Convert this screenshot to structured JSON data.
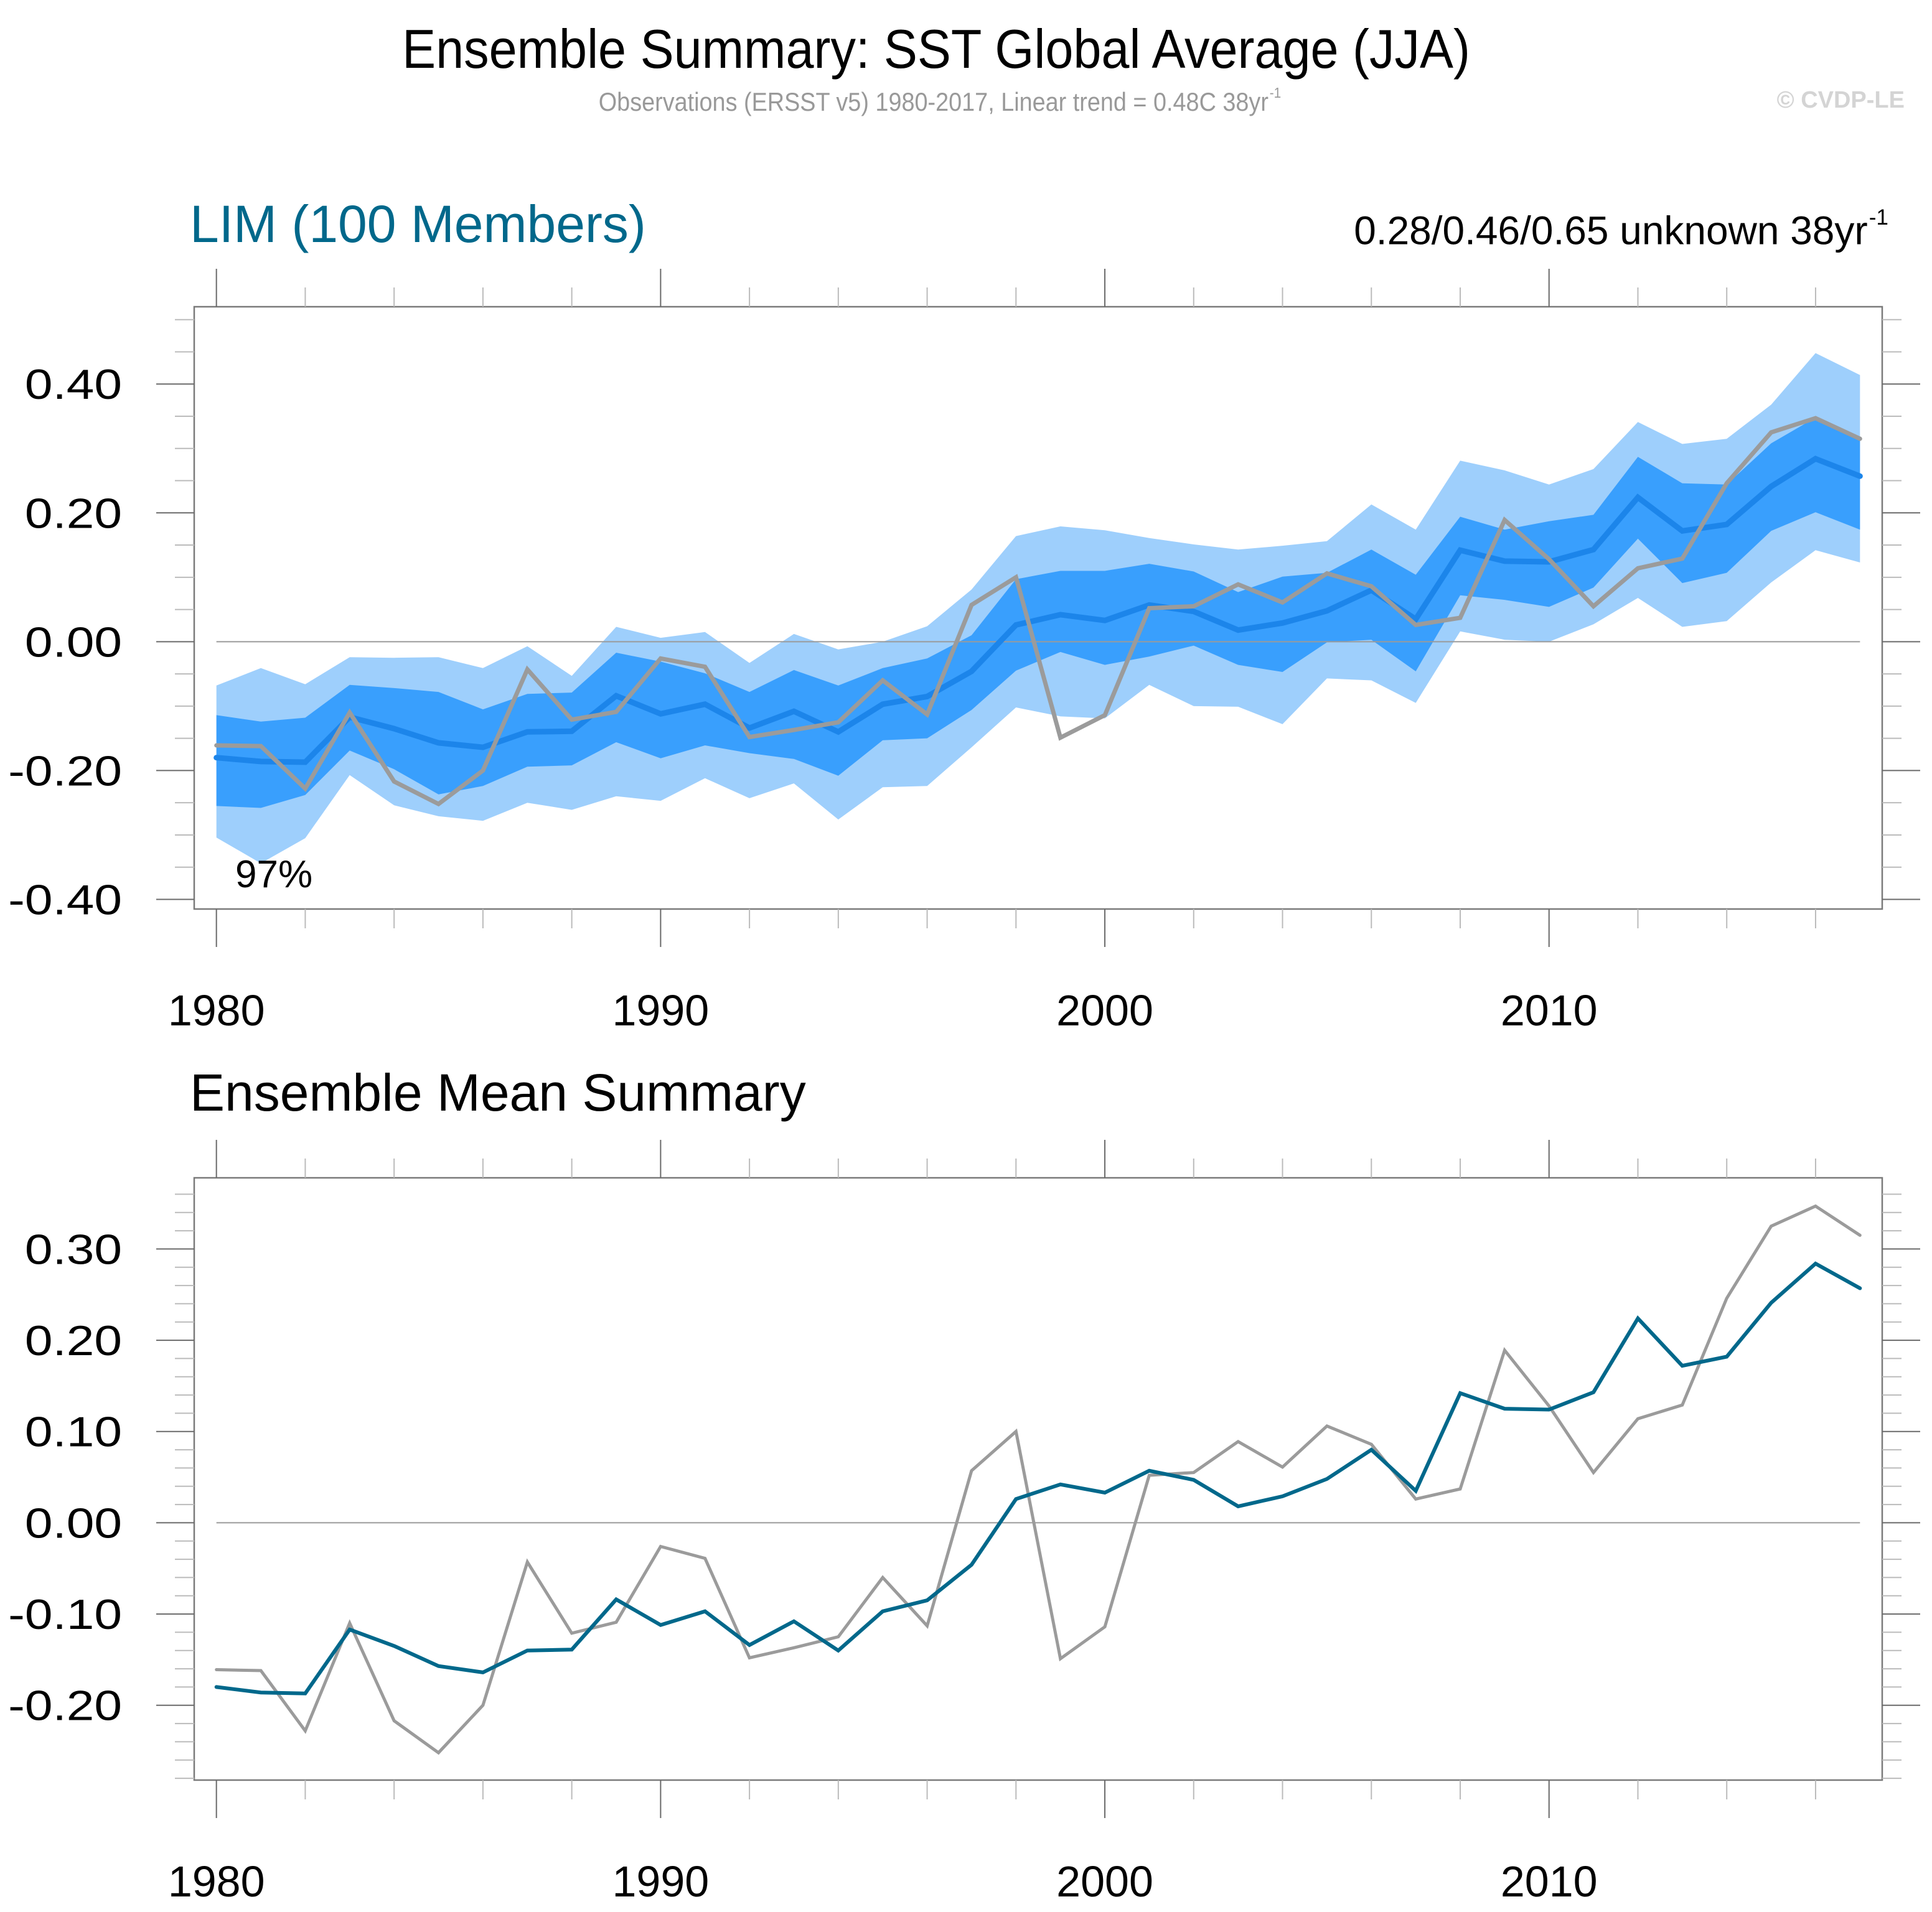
{
  "header": {
    "title": "Ensemble Summary: SST Global Average (JJA)",
    "subtitle_main": "Observations (ERSST v5) 1980-2017, Linear trend = 0.48C 38yr",
    "subtitle_sup": "-1",
    "copyright": "© CVDP-LE"
  },
  "upper_panel": {
    "title": "LIM (100 Members)",
    "trend_main": "0.28/0.46/0.65 unknown 38yr",
    "trend_sup": "-1",
    "annotation": "97%"
  },
  "lower_panel": {
    "title": "Ensemble Mean Summary"
  },
  "colors": {
    "outer_band": "#9ecffc",
    "inner_band": "#399ffd",
    "ensemble_mean_upper": "#1c85ea",
    "ensemble_mean_lower": "#00688b",
    "observations": "#9b9b9b",
    "title_accent": "#00688b"
  },
  "chart_data": [
    {
      "type": "area",
      "title": "LIM (100 Members)",
      "xlabel": "",
      "ylabel": "",
      "xlim": [
        1979.5,
        2017.5
      ],
      "ylim": [
        -0.415,
        0.52
      ],
      "x_ticks": [
        1980,
        1990,
        2000,
        2010
      ],
      "x_tick_labels": [
        "1980",
        "1990",
        "2000",
        "2010"
      ],
      "y_ticks": [
        -0.4,
        -0.2,
        0.0,
        0.2,
        0.4
      ],
      "y_tick_labels": [
        "-0.40",
        "-0.20",
        "0.00",
        "0.20",
        "0.40"
      ],
      "zero_line": true,
      "grid": false,
      "annotation": "97%",
      "x": [
        1980,
        1981,
        1982,
        1983,
        1984,
        1985,
        1986,
        1987,
        1988,
        1989,
        1990,
        1991,
        1992,
        1993,
        1994,
        1995,
        1996,
        1997,
        1998,
        1999,
        2000,
        2001,
        2002,
        2003,
        2004,
        2005,
        2006,
        2007,
        2008,
        2009,
        2010,
        2011,
        2012,
        2013,
        2014,
        2015,
        2016,
        2017
      ],
      "bands": [
        {
          "name": "outer range",
          "upper": [
            -0.068,
            -0.041,
            -0.066,
            -0.024,
            -0.025,
            -0.024,
            -0.041,
            -0.007,
            -0.053,
            0.023,
            0.006,
            0.015,
            -0.033,
            0.012,
            -0.012,
            0.0,
            0.024,
            0.081,
            0.164,
            0.179,
            0.173,
            0.161,
            0.151,
            0.143,
            0.149,
            0.156,
            0.213,
            0.174,
            0.281,
            0.266,
            0.244,
            0.268,
            0.341,
            0.307,
            0.315,
            0.368,
            0.448,
            0.414
          ],
          "lower": [
            -0.304,
            -0.344,
            -0.305,
            -0.207,
            -0.254,
            -0.271,
            -0.278,
            -0.25,
            -0.261,
            -0.24,
            -0.247,
            -0.212,
            -0.243,
            -0.22,
            -0.276,
            -0.226,
            -0.224,
            -0.164,
            -0.102,
            -0.116,
            -0.119,
            -0.067,
            -0.1,
            -0.101,
            -0.128,
            -0.057,
            -0.06,
            -0.095,
            0.016,
            0.003,
            0.0,
            0.027,
            0.068,
            0.023,
            0.032,
            0.092,
            0.142,
            0.123
          ]
        },
        {
          "name": "inner range",
          "upper": [
            -0.114,
            -0.124,
            -0.118,
            -0.067,
            -0.072,
            -0.078,
            -0.105,
            -0.081,
            -0.079,
            -0.017,
            -0.031,
            -0.049,
            -0.078,
            -0.044,
            -0.068,
            -0.041,
            -0.026,
            0.01,
            0.097,
            0.11,
            0.11,
            0.121,
            0.109,
            0.077,
            0.101,
            0.107,
            0.143,
            0.104,
            0.194,
            0.174,
            0.187,
            0.197,
            0.287,
            0.246,
            0.244,
            0.308,
            0.348,
            0.318
          ],
          "lower": [
            -0.255,
            -0.258,
            -0.238,
            -0.169,
            -0.198,
            -0.237,
            -0.224,
            -0.194,
            -0.192,
            -0.156,
            -0.181,
            -0.161,
            -0.173,
            -0.182,
            -0.208,
            -0.153,
            -0.15,
            -0.106,
            -0.045,
            -0.016,
            -0.036,
            -0.023,
            -0.006,
            -0.036,
            -0.047,
            -0.001,
            0.003,
            -0.046,
            0.072,
            0.065,
            0.054,
            0.084,
            0.16,
            0.091,
            0.107,
            0.172,
            0.201,
            0.174
          ]
        }
      ],
      "series": [
        {
          "name": "Ensemble mean",
          "values": [
            -0.18,
            -0.186,
            -0.187,
            -0.117,
            -0.135,
            -0.157,
            -0.164,
            -0.14,
            -0.139,
            -0.084,
            -0.112,
            -0.097,
            -0.134,
            -0.108,
            -0.14,
            -0.097,
            -0.085,
            -0.046,
            0.026,
            0.042,
            0.033,
            0.057,
            0.047,
            0.018,
            0.029,
            0.048,
            0.08,
            0.035,
            0.142,
            0.125,
            0.124,
            0.143,
            0.224,
            0.172,
            0.182,
            0.241,
            0.284,
            0.257
          ]
        },
        {
          "name": "Observations (ERSST v5)",
          "values": [
            -0.161,
            -0.162,
            -0.228,
            -0.11,
            -0.217,
            -0.252,
            -0.2,
            -0.043,
            -0.121,
            -0.109,
            -0.026,
            -0.039,
            -0.148,
            -0.137,
            -0.125,
            -0.06,
            -0.113,
            0.057,
            0.1,
            -0.149,
            -0.114,
            0.052,
            0.055,
            0.089,
            0.061,
            0.106,
            0.086,
            0.026,
            0.037,
            0.189,
            0.128,
            0.055,
            0.114,
            0.129,
            0.246,
            0.325,
            0.347,
            0.315
          ]
        }
      ]
    },
    {
      "type": "line",
      "title": "Ensemble Mean Summary",
      "xlabel": "",
      "ylabel": "",
      "xlim": [
        1979.5,
        2017.5
      ],
      "ylim": [
        -0.282,
        0.378
      ],
      "x_ticks": [
        1980,
        1990,
        2000,
        2010
      ],
      "x_tick_labels": [
        "1980",
        "1990",
        "2000",
        "2010"
      ],
      "y_ticks": [
        -0.2,
        -0.1,
        0.0,
        0.1,
        0.2,
        0.3
      ],
      "y_tick_labels": [
        "-0.20",
        "-0.10",
        "0.00",
        "0.10",
        "0.20",
        "0.30"
      ],
      "zero_line": true,
      "grid": false,
      "x": [
        1980,
        1981,
        1982,
        1983,
        1984,
        1985,
        1986,
        1987,
        1988,
        1989,
        1990,
        1991,
        1992,
        1993,
        1994,
        1995,
        1996,
        1997,
        1998,
        1999,
        2000,
        2001,
        2002,
        2003,
        2004,
        2005,
        2006,
        2007,
        2008,
        2009,
        2010,
        2011,
        2012,
        2013,
        2014,
        2015,
        2016,
        2017
      ],
      "series": [
        {
          "name": "Ensemble mean",
          "values": [
            -0.18,
            -0.186,
            -0.187,
            -0.117,
            -0.135,
            -0.157,
            -0.164,
            -0.14,
            -0.139,
            -0.084,
            -0.112,
            -0.097,
            -0.134,
            -0.108,
            -0.14,
            -0.097,
            -0.085,
            -0.046,
            0.026,
            0.042,
            0.033,
            0.057,
            0.047,
            0.018,
            0.029,
            0.048,
            0.08,
            0.035,
            0.142,
            0.125,
            0.124,
            0.143,
            0.224,
            0.172,
            0.182,
            0.241,
            0.284,
            0.257
          ]
        },
        {
          "name": "Observations (ERSST v5)",
          "values": [
            -0.161,
            -0.162,
            -0.228,
            -0.11,
            -0.217,
            -0.252,
            -0.2,
            -0.043,
            -0.121,
            -0.109,
            -0.026,
            -0.039,
            -0.148,
            -0.137,
            -0.125,
            -0.06,
            -0.113,
            0.057,
            0.1,
            -0.149,
            -0.114,
            0.052,
            0.055,
            0.089,
            0.061,
            0.106,
            0.086,
            0.026,
            0.037,
            0.189,
            0.128,
            0.055,
            0.114,
            0.129,
            0.246,
            0.325,
            0.347,
            0.315
          ]
        }
      ]
    }
  ]
}
